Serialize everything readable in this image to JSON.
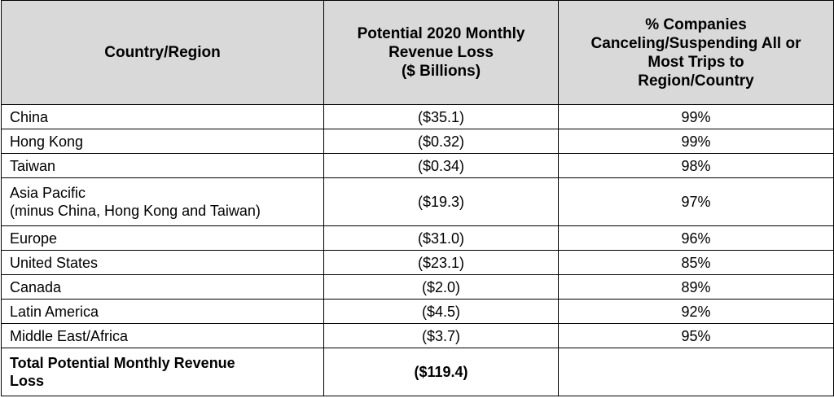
{
  "table": {
    "headers": {
      "region": "Country/Region",
      "loss": [
        "Potential 2020 Monthly",
        "Revenue Loss",
        "($ Billions)"
      ],
      "pct": [
        "% Companies",
        "Canceling/Suspending All or",
        "Most Trips to",
        "Region/Country"
      ]
    },
    "rows": [
      {
        "region": [
          "China"
        ],
        "loss": "($35.1)",
        "pct": "99%"
      },
      {
        "region": [
          "Hong Kong"
        ],
        "loss": "($0.32)",
        "pct": "99%"
      },
      {
        "region": [
          "Taiwan"
        ],
        "loss": "($0.34)",
        "pct": "98%"
      },
      {
        "region": [
          "Asia Pacific",
          "(minus China, Hong Kong and Taiwan)"
        ],
        "loss": "($19.3)",
        "pct": "97%"
      },
      {
        "region": [
          "Europe"
        ],
        "loss": "($31.0)",
        "pct": "96%"
      },
      {
        "region": [
          "United States"
        ],
        "loss": "($23.1)",
        "pct": "85%"
      },
      {
        "region": [
          "Canada"
        ],
        "loss": "($2.0)",
        "pct": "89%"
      },
      {
        "region": [
          "Latin America"
        ],
        "loss": "($4.5)",
        "pct": "92%"
      },
      {
        "region": [
          "Middle East/Africa"
        ],
        "loss": "($3.7)",
        "pct": "95%"
      }
    ],
    "total": {
      "label": [
        "Total Potential Monthly Revenue",
        "Loss"
      ],
      "loss": "($119.4)",
      "pct": ""
    }
  }
}
